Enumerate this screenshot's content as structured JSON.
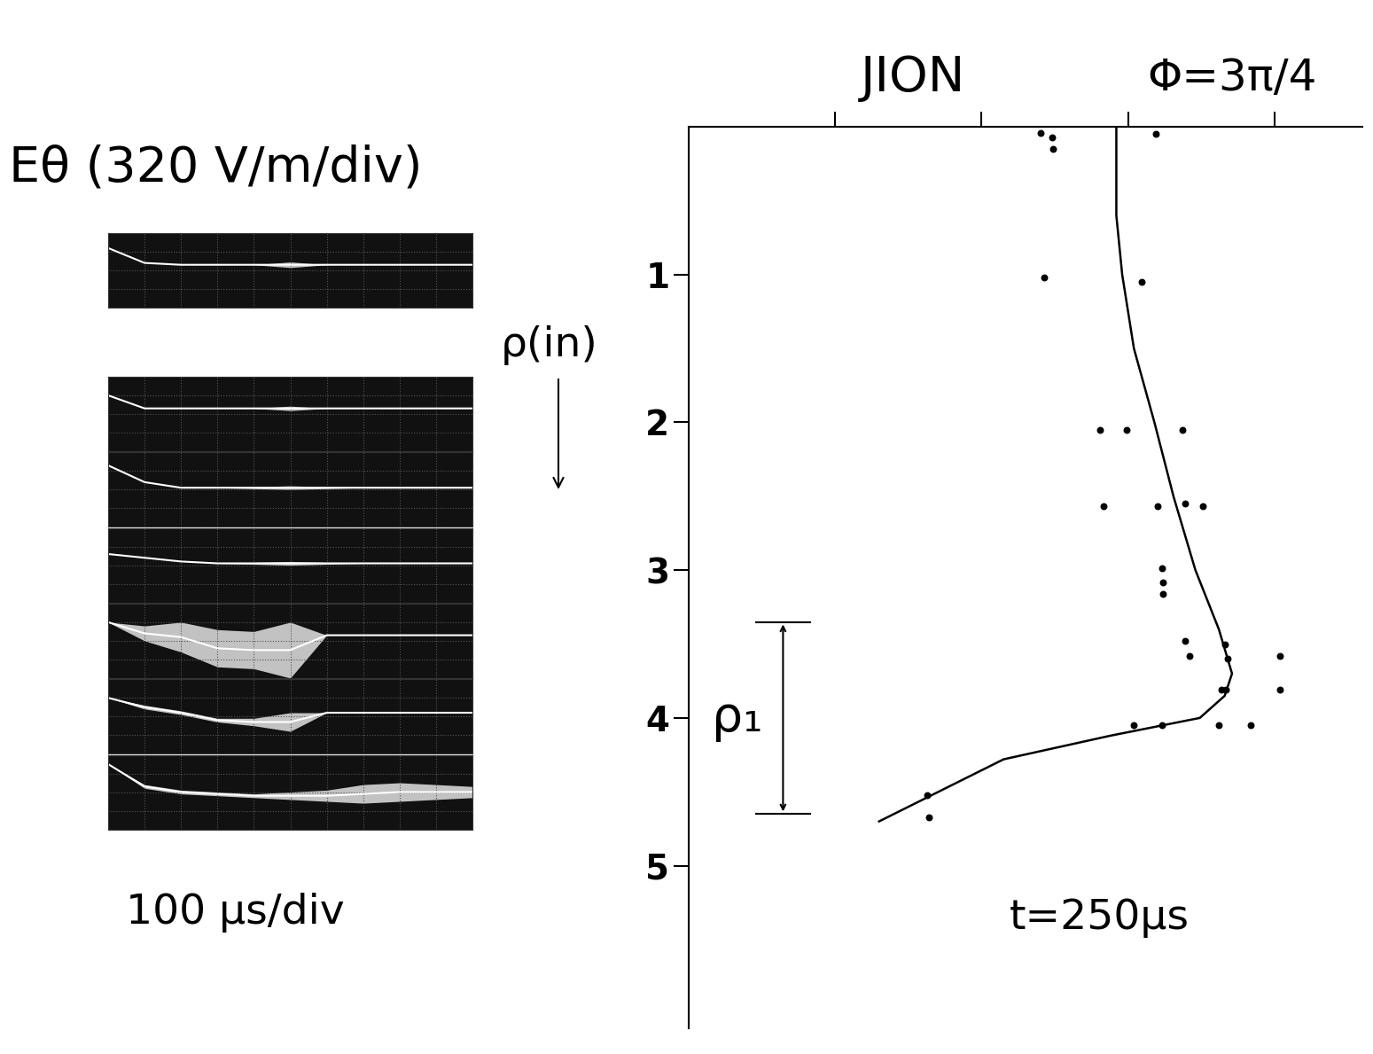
{
  "chart_data": [
    {
      "type": "oscillogram",
      "title": "Eθ (320 V/m/div)",
      "xlabel": "100 μs/div",
      "ylabel": "ρ(in)",
      "xlim": [
        0,
        10
      ],
      "ylim": [
        0,
        4
      ],
      "grid": true,
      "tick_labels": false,
      "color": "#ffffff",
      "x": [
        0,
        1,
        2,
        3,
        4,
        5,
        6,
        7,
        8,
        9,
        10
      ],
      "traces": [
        {
          "values": [
            3.2,
            2.4,
            2.3,
            2.3,
            2.3,
            2.3,
            2.3,
            2.3,
            2.3,
            2.3,
            2.3
          ],
          "spread": [
            0,
            0,
            0,
            0,
            0,
            0.15,
            0,
            0,
            0,
            0,
            0
          ]
        },
        {
          "values": [
            3.0,
            2.3,
            2.3,
            2.3,
            2.3,
            2.3,
            2.3,
            2.3,
            2.3,
            2.3,
            2.3
          ],
          "spread": [
            0,
            0,
            0,
            0,
            0,
            0.12,
            0,
            0,
            0,
            0,
            0
          ]
        },
        {
          "values": [
            3.3,
            2.4,
            2.1,
            2.1,
            2.1,
            2.1,
            2.1,
            2.1,
            2.1,
            2.1,
            2.1
          ],
          "spread": [
            0,
            0,
            0,
            0,
            0.05,
            0.1,
            0.05,
            0,
            0,
            0,
            0
          ]
        },
        {
          "values": [
            2.6,
            2.4,
            2.2,
            2.1,
            2.1,
            2.1,
            2.1,
            2.1,
            2.1,
            2.1,
            2.1
          ],
          "spread": [
            0,
            0,
            0,
            0,
            0.05,
            0.1,
            0.05,
            0,
            0,
            0,
            0
          ]
        },
        {
          "values": [
            3.0,
            2.4,
            2.2,
            1.6,
            1.5,
            1.5,
            2.3,
            2.3,
            2.3,
            2.3,
            2.3
          ],
          "spread": [
            0,
            0.4,
            0.8,
            1.0,
            1.0,
            1.5,
            0,
            0,
            0,
            0,
            0
          ]
        },
        {
          "values": [
            3.0,
            2.5,
            2.2,
            1.8,
            1.7,
            1.7,
            2.2,
            2.2,
            2.2,
            2.2,
            2.2
          ],
          "spread": [
            0,
            0.1,
            0.1,
            0.1,
            0.2,
            0.5,
            0,
            0,
            0,
            0,
            0
          ]
        },
        {
          "values": [
            3.5,
            2.3,
            2.0,
            1.9,
            1.8,
            1.8,
            1.8,
            1.9,
            2.0,
            2.0,
            2.0
          ],
          "spread": [
            0,
            0.1,
            0.1,
            0.1,
            0.1,
            0.2,
            0.3,
            0.5,
            0.5,
            0.4,
            0.3
          ]
        }
      ]
    },
    {
      "type": "scatter",
      "title": "JION",
      "subtitle": "Φ=3π/4",
      "annotation": "t=250μs",
      "range_label": "ρ₁",
      "range": [
        3.35,
        4.65
      ],
      "xlim": [
        0,
        4.6
      ],
      "ylim": [
        6.1,
        0
      ],
      "xticks": [
        1,
        2,
        3,
        4
      ],
      "yticks": [
        1,
        2,
        3,
        4,
        5
      ],
      "tick_labels": "y",
      "color": "#000000",
      "series": [
        {
          "type": "scatter",
          "marker": "o",
          "color": "#000000",
          "x": [
            2.4,
            2.48,
            2.49,
            3.19,
            2.43,
            3.09,
            2.81,
            2.99,
            3.37,
            2.83,
            3.2,
            3.39,
            3.51,
            3.23,
            3.24,
            3.24,
            3.39,
            3.42,
            3.66,
            3.68,
            4.04,
            3.64,
            3.67,
            4.04,
            3.04,
            3.23,
            3.62,
            3.84,
            1.63,
            1.64
          ],
          "values": [
            0.04,
            0.07,
            0.15,
            0.05,
            1.02,
            1.05,
            2.05,
            2.05,
            2.05,
            2.57,
            2.57,
            2.55,
            2.57,
            2.99,
            3.08,
            3.16,
            3.48,
            3.58,
            3.5,
            3.6,
            3.58,
            3.81,
            3.81,
            3.81,
            4.05,
            4.05,
            4.05,
            4.05,
            4.52,
            4.67
          ]
        },
        {
          "type": "line",
          "line_style": "solid",
          "color": "#000000",
          "x": [
            2.92,
            2.92,
            2.96,
            3.04,
            3.18,
            3.31,
            3.46,
            3.62,
            3.71,
            3.66,
            3.49,
            2.88,
            2.15,
            1.3
          ],
          "values": [
            0.0,
            0.6,
            1.0,
            1.5,
            2.0,
            2.5,
            3.0,
            3.4,
            3.7,
            3.85,
            4.0,
            4.12,
            4.28,
            4.7
          ]
        }
      ]
    }
  ]
}
